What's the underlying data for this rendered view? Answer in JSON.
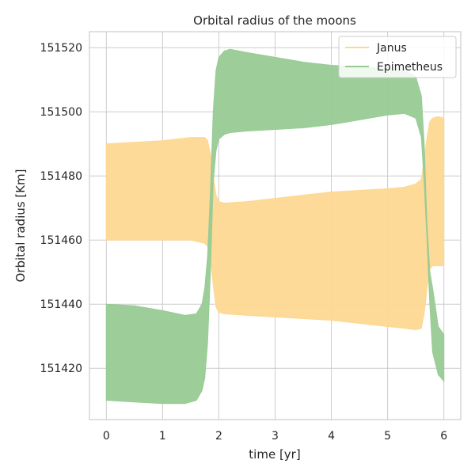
{
  "chart_data": {
    "type": "area",
    "title": "Orbital radius of the moons",
    "xlabel": "time [yr]",
    "ylabel": "Orbital radius [Km]",
    "xlim": [
      -0.3,
      6.3
    ],
    "ylim": [
      151404,
      151525
    ],
    "xticks": [
      0,
      1,
      2,
      3,
      4,
      5,
      6
    ],
    "yticks": [
      151420,
      151440,
      151460,
      151480,
      151500,
      151520
    ],
    "grid": true,
    "legend_position": "top-right",
    "series": [
      {
        "name": "Janus",
        "color": "#fdd891",
        "x": [
          0,
          0.5,
          1,
          1.5,
          1.75,
          1.8,
          1.85,
          1.9,
          1.95,
          2.0,
          2.1,
          2.5,
          3,
          3.5,
          4,
          4.5,
          5,
          5.3,
          5.5,
          5.6,
          5.65,
          5.7,
          5.75,
          5.8,
          5.9,
          6
        ],
        "upper": [
          151490,
          151490.5,
          151491,
          151492,
          151492,
          151491,
          151487,
          151480,
          151474,
          151472,
          151471.5,
          151472,
          151473,
          151474,
          151475,
          151475.5,
          151476,
          151476.5,
          151477.5,
          151479,
          151485,
          151492,
          151497,
          151498,
          151498.5,
          151498
        ],
        "lower": [
          151460,
          151460,
          151460,
          151460,
          151459,
          151458,
          151455,
          151446,
          151439,
          151437.5,
          151437,
          151436.5,
          151436,
          151435.5,
          151435,
          151434,
          151433,
          151432.5,
          151432,
          151432.5,
          151437,
          151445,
          151451,
          151452,
          151452,
          151452
        ]
      },
      {
        "name": "Epimetheus",
        "color": "#98cb95",
        "x": [
          0,
          0.5,
          1,
          1.4,
          1.6,
          1.7,
          1.75,
          1.8,
          1.85,
          1.9,
          1.95,
          2.0,
          2.1,
          2.2,
          2.5,
          3,
          3.5,
          4,
          4.5,
          5,
          5.3,
          5.5,
          5.6,
          5.65,
          5.7,
          5.75,
          5.8,
          5.9,
          6
        ],
        "upper": [
          151440,
          151439.5,
          151438,
          151436.5,
          151437,
          151440,
          151445,
          151455,
          151475,
          151500,
          151513,
          151517,
          151519,
          151519.5,
          151518.5,
          151517,
          151515.5,
          151514.5,
          151514,
          151513.5,
          151513,
          151511,
          151505,
          151490,
          151465,
          151450,
          151445,
          151433,
          151430.5
        ],
        "lower": [
          151410,
          151409.5,
          151409,
          151409,
          151410,
          151413,
          151417,
          151428,
          151450,
          151478,
          151488,
          151491.5,
          151493,
          151493.5,
          151494,
          151494.5,
          151495,
          151496,
          151497.5,
          151499,
          151499.5,
          151498,
          151492,
          151478,
          151460,
          151440,
          151425,
          151418,
          151416
        ]
      }
    ]
  }
}
